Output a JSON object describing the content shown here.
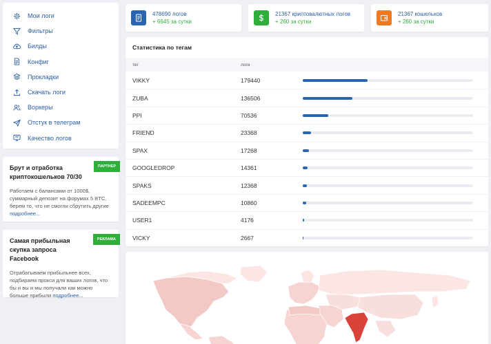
{
  "nav": {
    "items": [
      {
        "label": "Мои логи",
        "icon": "sparkle-icon"
      },
      {
        "label": "Фильтры",
        "icon": "filter-icon"
      },
      {
        "label": "Билды",
        "icon": "cloud-icon"
      },
      {
        "label": "Конфиг",
        "icon": "document-icon"
      },
      {
        "label": "Прокладки",
        "icon": "layers-icon"
      },
      {
        "label": "Скачать логи",
        "icon": "upload-icon"
      },
      {
        "label": "Воркеры",
        "icon": "users-icon"
      },
      {
        "label": "Отстук в телеграм",
        "icon": "send-icon"
      },
      {
        "label": "Качество логов",
        "icon": "monitor-icon"
      }
    ]
  },
  "promos": [
    {
      "badge": "ПАРТНЕР",
      "title": "Брут и отработка криптокошельков 70/30",
      "text": "Работаем с балансами от 1000$, суммарный депозит на форумах 5 BTC, берем то, что не смогли сбрутить другие",
      "more": "подробнее..."
    },
    {
      "badge": "РЕКЛАМА",
      "title": "Самая прибыльная скупка запроса Facebook",
      "text": "Отрабатываем прибыльнее всех, подбираем прокси для ваших логов, что бы и вы и мы получали как можно больше прибыли",
      "more": "подробнее..."
    }
  ],
  "stats": [
    {
      "main": "478690 логов",
      "sub": "+ 6645 за сутки",
      "icon": "file-icon",
      "color": "#2a65b3"
    },
    {
      "main": "21367 криптовалютных логов",
      "sub": "+ 260 за сутки",
      "icon": "dollar-icon",
      "color": "#2fae3c"
    },
    {
      "main": "21367 кошельков",
      "sub": "+ 260 за сутки",
      "icon": "wallet-icon",
      "color": "#f07a22"
    }
  ],
  "tags": {
    "title": "Статистика по тегам",
    "col_tag": "тег",
    "col_logs": "логи",
    "rows": [
      {
        "tag": "VIKKY",
        "logs": "179440",
        "share": 0.38
      },
      {
        "tag": "ZUBA",
        "logs": "136506",
        "share": 0.29
      },
      {
        "tag": "PPI",
        "logs": "70536",
        "share": 0.15
      },
      {
        "tag": "FRIEND",
        "logs": "23368",
        "share": 0.05
      },
      {
        "tag": "SPAX",
        "logs": "17268",
        "share": 0.035
      },
      {
        "tag": "GOOGLEDROP",
        "logs": "14361",
        "share": 0.03
      },
      {
        "tag": "SPAKS",
        "logs": "12368",
        "share": 0.025
      },
      {
        "tag": "SADEEMPC",
        "logs": "10860",
        "share": 0.022
      },
      {
        "tag": "USER1",
        "logs": "4176",
        "share": 0.009
      },
      {
        "tag": "VICKY",
        "logs": "2667",
        "share": 0.006
      }
    ]
  },
  "map": {
    "highlight_color": "#d9433a",
    "light_color": "#f6d4d2"
  }
}
